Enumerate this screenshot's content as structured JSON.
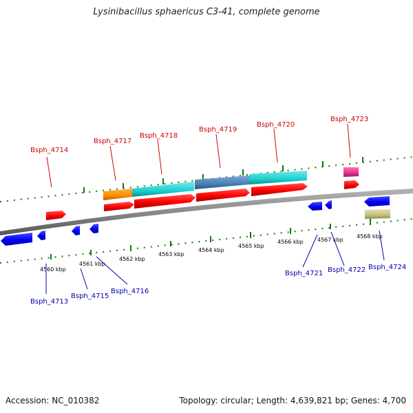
{
  "title": "Lysinibacillus sphaericus C3-41, complete genome",
  "footer": {
    "accession": "Accession: NC_010382",
    "summary": "Topology: circular; Length: 4,639,821 bp; Genes: 4,700"
  },
  "colors": {
    "forward_label": "#cc0000",
    "reverse_label": "#0000aa",
    "backbone": "#8a8a8a",
    "tick": "#0a7a0a",
    "cds_forward": "#ff0000",
    "cds_reverse": "#0000ff",
    "orange_feature": "#ff8c00",
    "cyan_feature": "#1ed0d0",
    "steel_feature": "#4a7fb5",
    "magenta_feature": "#e0308a",
    "khaki_feature": "#c8c080"
  },
  "tick_labels": [
    "4560 kbp",
    "4561 kbp",
    "4562 kbp",
    "4563 kbp",
    "4564 kbp",
    "4565 kbp",
    "4566 kbp",
    "4567 kbp",
    "4568 kbp"
  ],
  "forward_genes": [
    "Bsph_4714",
    "Bsph_4717",
    "Bsph_4718",
    "Bsph_4719",
    "Bsph_4720",
    "Bsph_4723"
  ],
  "reverse_genes": [
    "Bsph_4713",
    "Bsph_4715",
    "Bsph_4716",
    "Bsph_4721",
    "Bsph_4722",
    "Bsph_4724"
  ]
}
